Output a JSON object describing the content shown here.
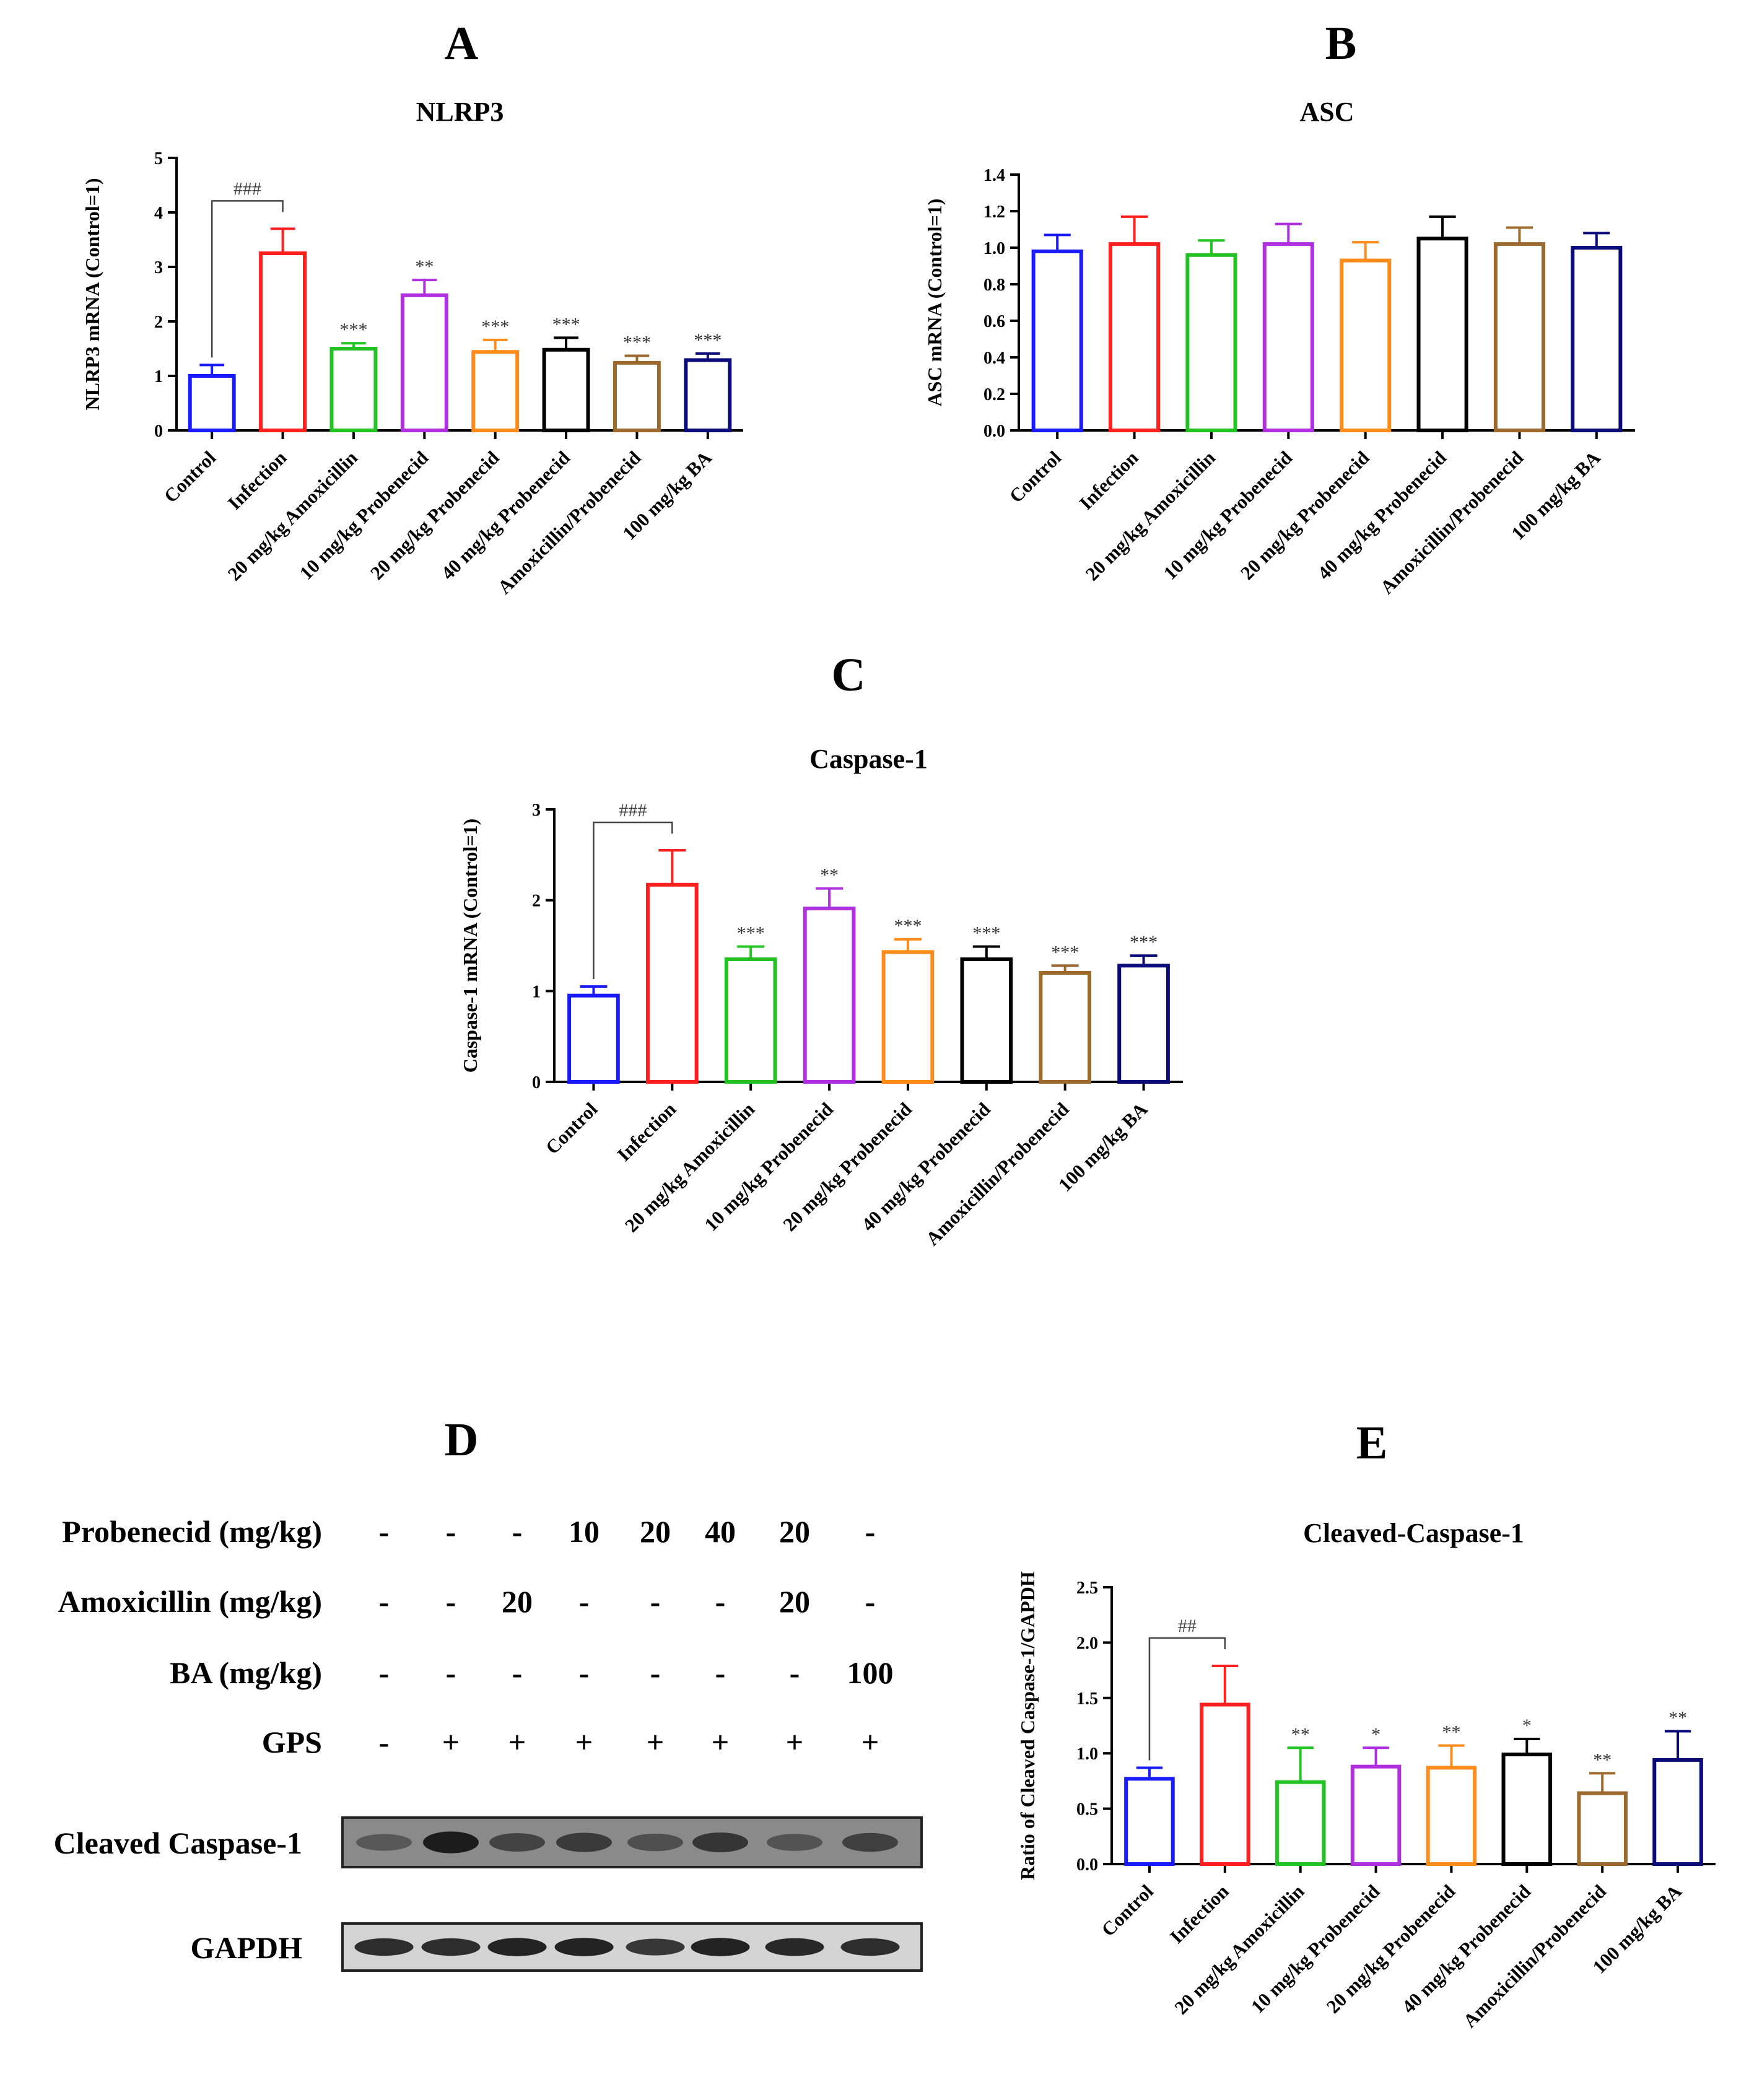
{
  "colors": {
    "control": "#1a1aff",
    "infection": "#ff2020",
    "amoxicillin": "#22c322",
    "probenecid10": "#b030e0",
    "probenecid20": "#ff8c1a",
    "probenecid40": "#000000",
    "combo": "#9c6a2e",
    "ba": "#0b0b7a"
  },
  "groups": [
    "Control",
    "Infection",
    "20 mg/kg Amoxicillin",
    "10 mg/kg Probenecid",
    "20 mg/kg Probenecid",
    "40 mg/kg Probenecid",
    "Amoxicillin/Probenecid",
    "100 mg/kg BA"
  ],
  "chart_data": [
    {
      "panel": "A",
      "type": "bar",
      "title": "NLRP3",
      "ylabel": "NLRP3 mRNA (Control=1)",
      "ylim": [
        0,
        5
      ],
      "yticks": [
        "0",
        "1",
        "2",
        "3",
        "4",
        "5"
      ],
      "values": [
        1.0,
        3.25,
        1.5,
        2.48,
        1.44,
        1.48,
        1.24,
        1.29
      ],
      "errors": [
        0.2,
        0.45,
        0.1,
        0.28,
        0.22,
        0.22,
        0.13,
        0.12
      ],
      "annotations": [
        "",
        "",
        "***",
        "**",
        "***",
        "***",
        "***",
        "***"
      ],
      "bracket": {
        "from": 0,
        "to": 1,
        "label": "###"
      }
    },
    {
      "panel": "B",
      "type": "bar",
      "title": "ASC",
      "ylabel": "ASC mRNA (Control=1)",
      "ylim": [
        0,
        1.4
      ],
      "yticks": [
        "0.0",
        "0.2",
        "0.4",
        "0.6",
        "0.8",
        "1.0",
        "1.2",
        "1.4"
      ],
      "values": [
        0.98,
        1.02,
        0.96,
        1.02,
        0.93,
        1.05,
        1.02,
        1.0
      ],
      "errors": [
        0.09,
        0.15,
        0.08,
        0.11,
        0.1,
        0.12,
        0.09,
        0.08
      ],
      "annotations": [
        "",
        "",
        "",
        "",
        "",
        "",
        "",
        ""
      ],
      "bracket": null
    },
    {
      "panel": "C",
      "type": "bar",
      "title": "Caspase-1",
      "ylabel": "Caspase-1 mRNA (Control=1)",
      "ylim": [
        0,
        3
      ],
      "yticks": [
        "0",
        "1",
        "2",
        "3"
      ],
      "values": [
        0.95,
        2.17,
        1.35,
        1.91,
        1.43,
        1.35,
        1.2,
        1.28
      ],
      "errors": [
        0.1,
        0.38,
        0.14,
        0.22,
        0.14,
        0.14,
        0.08,
        0.11
      ],
      "annotations": [
        "",
        "",
        "***",
        "**",
        "***",
        "***",
        "***",
        "***"
      ],
      "bracket": {
        "from": 0,
        "to": 1,
        "label": "###"
      }
    },
    {
      "panel": "E",
      "type": "bar",
      "title": "Cleaved-Caspase-1",
      "ylabel": "Ratio of Cleaved Caspase-1/GAPDH",
      "ylim": [
        0,
        2.5
      ],
      "yticks": [
        "0.0",
        "0.5",
        "1.0",
        "1.5",
        "2.0",
        "2.5"
      ],
      "values": [
        0.77,
        1.44,
        0.74,
        0.88,
        0.87,
        0.99,
        0.64,
        0.94
      ],
      "errors": [
        0.1,
        0.35,
        0.31,
        0.17,
        0.2,
        0.14,
        0.18,
        0.26
      ],
      "annotations": [
        "",
        "",
        "**",
        "*",
        "**",
        "*",
        "**",
        "**"
      ],
      "bracket": {
        "from": 0,
        "to": 1,
        "label": "##"
      }
    }
  ],
  "western_blot": {
    "panel": "D",
    "rows": [
      {
        "label": "Probenecid (mg/kg)",
        "values": [
          "-",
          "-",
          "-",
          "10",
          "20",
          "40",
          "20",
          "-"
        ]
      },
      {
        "label": "Amoxicillin (mg/kg)",
        "values": [
          "-",
          "-",
          "20",
          "-",
          "-",
          "-",
          "20",
          "-"
        ]
      },
      {
        "label": "BA (mg/kg)",
        "values": [
          "-",
          "-",
          "-",
          "-",
          "-",
          "-",
          "-",
          "100"
        ]
      },
      {
        "label": "GPS",
        "values": [
          "-",
          "+",
          "+",
          "+",
          "+",
          "+",
          "+",
          "+"
        ]
      }
    ],
    "blots": [
      {
        "label": "Cleaved Caspase-1",
        "intensities": [
          0.35,
          0.95,
          0.55,
          0.65,
          0.45,
          0.7,
          0.4,
          0.6
        ]
      },
      {
        "label": "GAPDH",
        "intensities": [
          0.85,
          0.85,
          0.95,
          0.95,
          0.75,
          0.95,
          0.9,
          0.85
        ]
      }
    ]
  }
}
